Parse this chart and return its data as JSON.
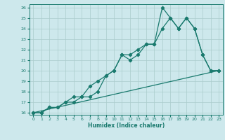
{
  "title": "",
  "xlabel": "Humidex (Indice chaleur)",
  "xlim_min": -0.5,
  "xlim_max": 23.5,
  "ylim_min": 15.8,
  "ylim_max": 26.3,
  "xticks": [
    0,
    1,
    2,
    3,
    4,
    5,
    6,
    7,
    8,
    9,
    10,
    11,
    12,
    13,
    14,
    15,
    16,
    17,
    18,
    19,
    20,
    21,
    22,
    23
  ],
  "yticks": [
    16,
    17,
    18,
    19,
    20,
    21,
    22,
    23,
    24,
    25,
    26
  ],
  "bg_color": "#cde8ec",
  "line_color": "#1a7a6e",
  "grid_color": "#aacccc",
  "line1_x": [
    0,
    1,
    2,
    3,
    4,
    5,
    6,
    7,
    8,
    9,
    10,
    11,
    12,
    13,
    14,
    15,
    16,
    17,
    18,
    19,
    20,
    21,
    22,
    23
  ],
  "line1_y": [
    16,
    16,
    16.5,
    16.5,
    17,
    17.5,
    17.5,
    18.5,
    19,
    19.5,
    20,
    21.5,
    21.5,
    22,
    22.5,
    22.5,
    26,
    25,
    24,
    25,
    24,
    21.5,
    20,
    20
  ],
  "line2_x": [
    0,
    1,
    2,
    3,
    4,
    5,
    6,
    7,
    8,
    9,
    10,
    11,
    12,
    13,
    14,
    15,
    16,
    17,
    18,
    19,
    20,
    21,
    22,
    23
  ],
  "line2_y": [
    16,
    16,
    16.5,
    16.5,
    17,
    17,
    17.5,
    17.5,
    18,
    19.5,
    20,
    21.5,
    21,
    21.5,
    22.5,
    22.5,
    24,
    25,
    24,
    25,
    24,
    21.5,
    20,
    20
  ],
  "line3_x": [
    0,
    23
  ],
  "line3_y": [
    16,
    20
  ],
  "marker_size": 2.2,
  "line_width": 0.9
}
